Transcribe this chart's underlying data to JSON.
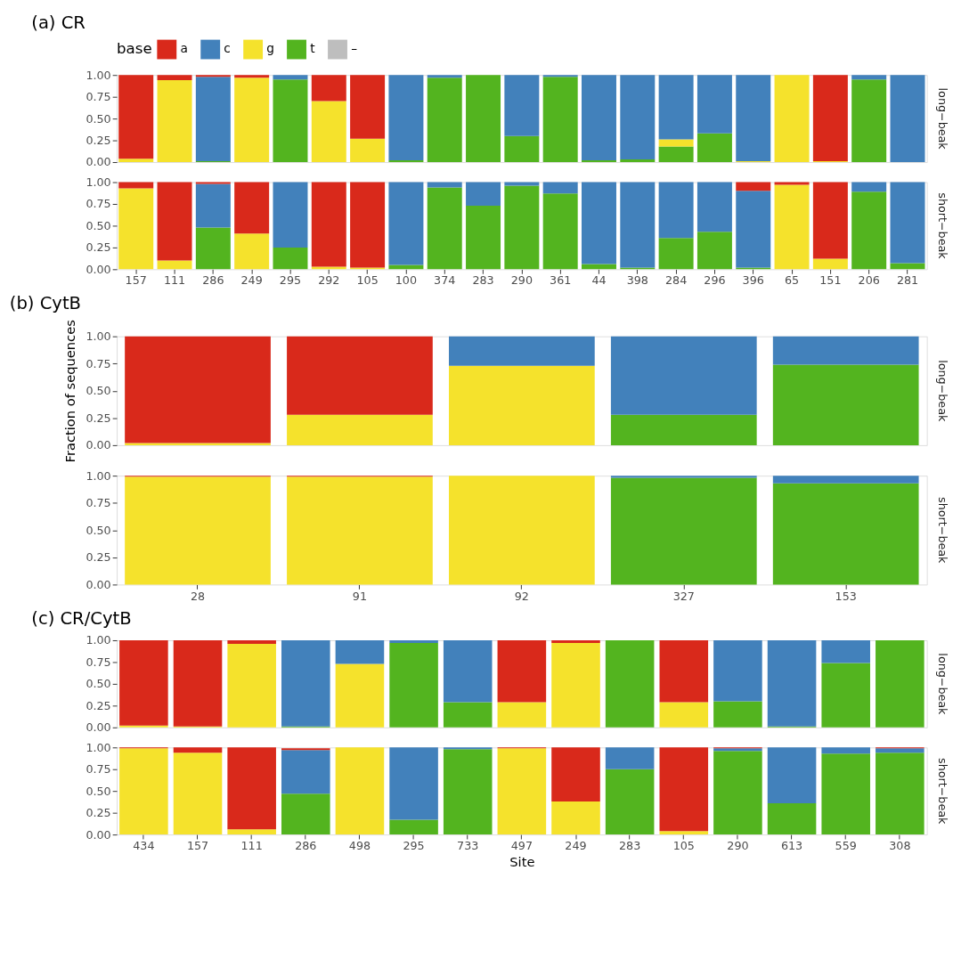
{
  "chart_data": [
    {
      "type": "bar",
      "stacked": true,
      "title": "(a) CR",
      "y2label": "long−beak",
      "legend_title": "base",
      "legend": "top",
      "grid": false,
      "tick_labels": "y",
      "categories": [
        "157",
        "111",
        "286",
        "249",
        "295",
        "292",
        "105",
        "100",
        "374",
        "283",
        "290",
        "361",
        "44",
        "398",
        "284",
        "296",
        "396",
        "65",
        "151",
        "206",
        "281"
      ],
      "ylim": [
        0,
        1
      ],
      "yticks": [
        {
          "value": 0,
          "label": "0.00"
        },
        {
          "value": 0.25,
          "label": "0.25"
        },
        {
          "value": 0.5,
          "label": "0.50"
        },
        {
          "value": 0.75,
          "label": "0.75"
        },
        {
          "value": 1,
          "label": "1.00"
        }
      ],
      "series": [
        {
          "name": "–",
          "color": "#bebebe",
          "values": [
            null,
            null,
            null,
            null,
            null,
            null,
            null,
            null,
            null,
            null,
            null,
            null,
            null,
            null,
            null,
            null,
            null,
            null,
            null,
            null,
            null
          ]
        },
        {
          "name": "t",
          "color": "#53b41f",
          "values": [
            null,
            null,
            0.01,
            null,
            0.95,
            null,
            null,
            0.02,
            0.97,
            1.0,
            0.3,
            0.98,
            0.02,
            0.03,
            0.18,
            0.33,
            null,
            null,
            null,
            0.95,
            null
          ]
        },
        {
          "name": "g",
          "color": "#f5e22c",
          "values": [
            0.04,
            0.94,
            null,
            0.97,
            null,
            0.7,
            0.27,
            null,
            null,
            null,
            null,
            null,
            null,
            null,
            0.08,
            null,
            0.01,
            1.0,
            0.01,
            null,
            null
          ]
        },
        {
          "name": "c",
          "color": "#4281bb",
          "values": [
            null,
            null,
            0.97,
            null,
            0.05,
            null,
            null,
            0.98,
            0.03,
            null,
            0.7,
            0.02,
            0.98,
            0.97,
            0.74,
            0.67,
            0.99,
            null,
            null,
            0.05,
            1.0
          ]
        },
        {
          "name": "a",
          "color": "#d9291b",
          "values": [
            0.96,
            0.06,
            0.02,
            0.03,
            null,
            0.3,
            0.73,
            null,
            null,
            null,
            null,
            null,
            null,
            null,
            null,
            null,
            null,
            null,
            0.99,
            null,
            null
          ]
        }
      ]
    },
    {
      "type": "bar",
      "stacked": true,
      "y2label": "short−beak",
      "grid": false,
      "categories": [
        "157",
        "111",
        "286",
        "249",
        "295",
        "292",
        "105",
        "100",
        "374",
        "283",
        "290",
        "361",
        "44",
        "398",
        "284",
        "296",
        "396",
        "65",
        "151",
        "206",
        "281"
      ],
      "ylim": [
        0,
        1
      ],
      "yticks": [
        {
          "value": 0,
          "label": "0.00"
        },
        {
          "value": 0.25,
          "label": "0.25"
        },
        {
          "value": 0.5,
          "label": "0.50"
        },
        {
          "value": 0.75,
          "label": "0.75"
        },
        {
          "value": 1,
          "label": "1.00"
        }
      ],
      "series": [
        {
          "color": "#bebebe",
          "values": [
            null,
            null,
            null,
            null,
            null,
            null,
            null,
            null,
            null,
            null,
            null,
            null,
            null,
            null,
            null,
            null,
            null,
            null,
            null,
            null,
            null
          ]
        },
        {
          "color": "#53b41f",
          "values": [
            null,
            null,
            0.48,
            null,
            0.25,
            null,
            null,
            0.05,
            0.94,
            0.73,
            0.96,
            0.87,
            0.06,
            0.02,
            0.36,
            0.43,
            0.02,
            null,
            null,
            0.89,
            0.07
          ]
        },
        {
          "color": "#f5e22c",
          "values": [
            0.93,
            0.1,
            null,
            0.41,
            null,
            0.03,
            0.02,
            null,
            null,
            null,
            null,
            null,
            null,
            null,
            null,
            null,
            null,
            0.97,
            0.12,
            null,
            null
          ]
        },
        {
          "color": "#4281bb",
          "values": [
            null,
            null,
            0.5,
            null,
            0.75,
            null,
            null,
            0.95,
            0.06,
            0.27,
            0.04,
            0.13,
            0.94,
            0.98,
            0.64,
            0.57,
            0.88,
            null,
            null,
            0.11,
            0.93
          ]
        },
        {
          "color": "#d9291b",
          "values": [
            0.07,
            0.9,
            0.02,
            0.59,
            null,
            0.97,
            0.98,
            null,
            null,
            null,
            null,
            null,
            null,
            null,
            null,
            null,
            0.1,
            0.03,
            0.88,
            null,
            null
          ]
        }
      ]
    },
    {
      "type": "bar",
      "stacked": true,
      "title": "(b) CytB",
      "y2label": "long−beak",
      "ylabel": "Fraction of sequences",
      "grid": false,
      "tick_labels": "y",
      "categories": [
        "28",
        "91",
        "92",
        "327",
        "153"
      ],
      "ylim": [
        0,
        1
      ],
      "yticks": [
        {
          "value": 0,
          "label": "0.00"
        },
        {
          "value": 0.25,
          "label": "0.25"
        },
        {
          "value": 0.5,
          "label": "0.50"
        },
        {
          "value": 0.75,
          "label": "0.75"
        },
        {
          "value": 1,
          "label": "1.00"
        }
      ],
      "series": [
        {
          "color": "#bebebe",
          "values": [
            null,
            null,
            null,
            null,
            null
          ]
        },
        {
          "color": "#53b41f",
          "values": [
            null,
            null,
            null,
            0.28,
            0.74
          ]
        },
        {
          "color": "#f5e22c",
          "values": [
            0.02,
            0.28,
            0.73,
            null,
            null
          ]
        },
        {
          "color": "#4281bb",
          "values": [
            null,
            null,
            0.27,
            0.72,
            0.26
          ]
        },
        {
          "color": "#d9291b",
          "values": [
            0.98,
            0.72,
            null,
            null,
            null
          ]
        }
      ]
    },
    {
      "type": "bar",
      "stacked": true,
      "y2label": "short−beak",
      "grid": false,
      "categories": [
        "28",
        "91",
        "92",
        "327",
        "153"
      ],
      "ylim": [
        0,
        1
      ],
      "yticks": [
        {
          "value": 0,
          "label": "0.00"
        },
        {
          "value": 0.25,
          "label": "0.25"
        },
        {
          "value": 0.5,
          "label": "0.50"
        },
        {
          "value": 0.75,
          "label": "0.75"
        },
        {
          "value": 1,
          "label": "1.00"
        }
      ],
      "series": [
        {
          "color": "#bebebe",
          "values": [
            null,
            null,
            null,
            null,
            null
          ]
        },
        {
          "color": "#53b41f",
          "values": [
            null,
            null,
            null,
            0.98,
            0.93
          ]
        },
        {
          "color": "#f5e22c",
          "values": [
            0.99,
            0.99,
            1.0,
            null,
            null
          ]
        },
        {
          "color": "#4281bb",
          "values": [
            null,
            null,
            null,
            0.02,
            0.07
          ]
        },
        {
          "color": "#d9291b",
          "values": [
            0.01,
            0.01,
            null,
            null,
            null
          ]
        }
      ]
    },
    {
      "type": "bar",
      "stacked": true,
      "title": "(c) CR/CytB",
      "y2label": "long−beak",
      "grid": false,
      "tick_labels": "y",
      "categories": [
        "434",
        "157",
        "111",
        "286",
        "498",
        "295",
        "733",
        "497",
        "249",
        "283",
        "105",
        "290",
        "613",
        "559",
        "308"
      ],
      "ylim": [
        0,
        1
      ],
      "yticks": [
        {
          "value": 0,
          "label": "0.00"
        },
        {
          "value": 0.25,
          "label": "0.25"
        },
        {
          "value": 0.5,
          "label": "0.50"
        },
        {
          "value": 0.75,
          "label": "0.75"
        },
        {
          "value": 1,
          "label": "1.00"
        }
      ],
      "series": [
        {
          "color": "#bebebe",
          "values": [
            null,
            null,
            null,
            null,
            null,
            null,
            null,
            null,
            null,
            null,
            null,
            null,
            null,
            null,
            null
          ]
        },
        {
          "color": "#53b41f",
          "values": [
            null,
            null,
            null,
            0.01,
            null,
            0.97,
            0.29,
            null,
            null,
            1.0,
            null,
            0.3,
            0.01,
            0.74,
            1.0
          ]
        },
        {
          "color": "#f5e22c",
          "values": [
            0.02,
            0.01,
            0.96,
            null,
            0.73,
            null,
            null,
            0.29,
            0.97,
            null,
            0.29,
            null,
            null,
            null,
            null
          ]
        },
        {
          "color": "#4281bb",
          "values": [
            null,
            null,
            null,
            0.99,
            0.27,
            0.03,
            0.71,
            null,
            null,
            null,
            null,
            0.7,
            0.99,
            0.26,
            null
          ]
        },
        {
          "color": "#d9291b",
          "values": [
            0.98,
            0.99,
            0.04,
            null,
            null,
            null,
            null,
            0.71,
            0.03,
            null,
            0.71,
            null,
            null,
            null,
            null
          ]
        }
      ]
    },
    {
      "type": "bar",
      "stacked": true,
      "y2label": "short−beak",
      "xlabel": "Site",
      "grid": false,
      "categories": [
        "434",
        "157",
        "111",
        "286",
        "498",
        "295",
        "733",
        "497",
        "249",
        "283",
        "105",
        "290",
        "613",
        "559",
        "308"
      ],
      "ylim": [
        0,
        1
      ],
      "yticks": [
        {
          "value": 0,
          "label": "0.00"
        },
        {
          "value": 0.25,
          "label": "0.25"
        },
        {
          "value": 0.5,
          "label": "0.50"
        },
        {
          "value": 0.75,
          "label": "0.75"
        },
        {
          "value": 1,
          "label": "1.00"
        }
      ],
      "series": [
        {
          "color": "#bebebe",
          "values": [
            null,
            null,
            null,
            null,
            null,
            null,
            null,
            null,
            null,
            null,
            null,
            null,
            null,
            null,
            null
          ]
        },
        {
          "color": "#53b41f",
          "values": [
            null,
            null,
            null,
            0.47,
            null,
            0.17,
            0.98,
            null,
            null,
            0.75,
            null,
            0.96,
            0.36,
            0.93,
            0.94
          ]
        },
        {
          "color": "#f5e22c",
          "values": [
            0.99,
            0.94,
            0.06,
            null,
            1.0,
            null,
            null,
            0.99,
            0.38,
            null,
            0.04,
            null,
            null,
            null,
            null
          ]
        },
        {
          "color": "#4281bb",
          "values": [
            null,
            null,
            null,
            0.5,
            null,
            0.83,
            0.02,
            null,
            null,
            0.25,
            null,
            0.03,
            0.64,
            0.07,
            0.05
          ]
        },
        {
          "color": "#d9291b",
          "values": [
            0.01,
            0.06,
            0.94,
            0.02,
            null,
            null,
            null,
            0.01,
            0.62,
            null,
            0.96,
            0.01,
            null,
            null,
            0.01
          ]
        }
      ]
    }
  ]
}
